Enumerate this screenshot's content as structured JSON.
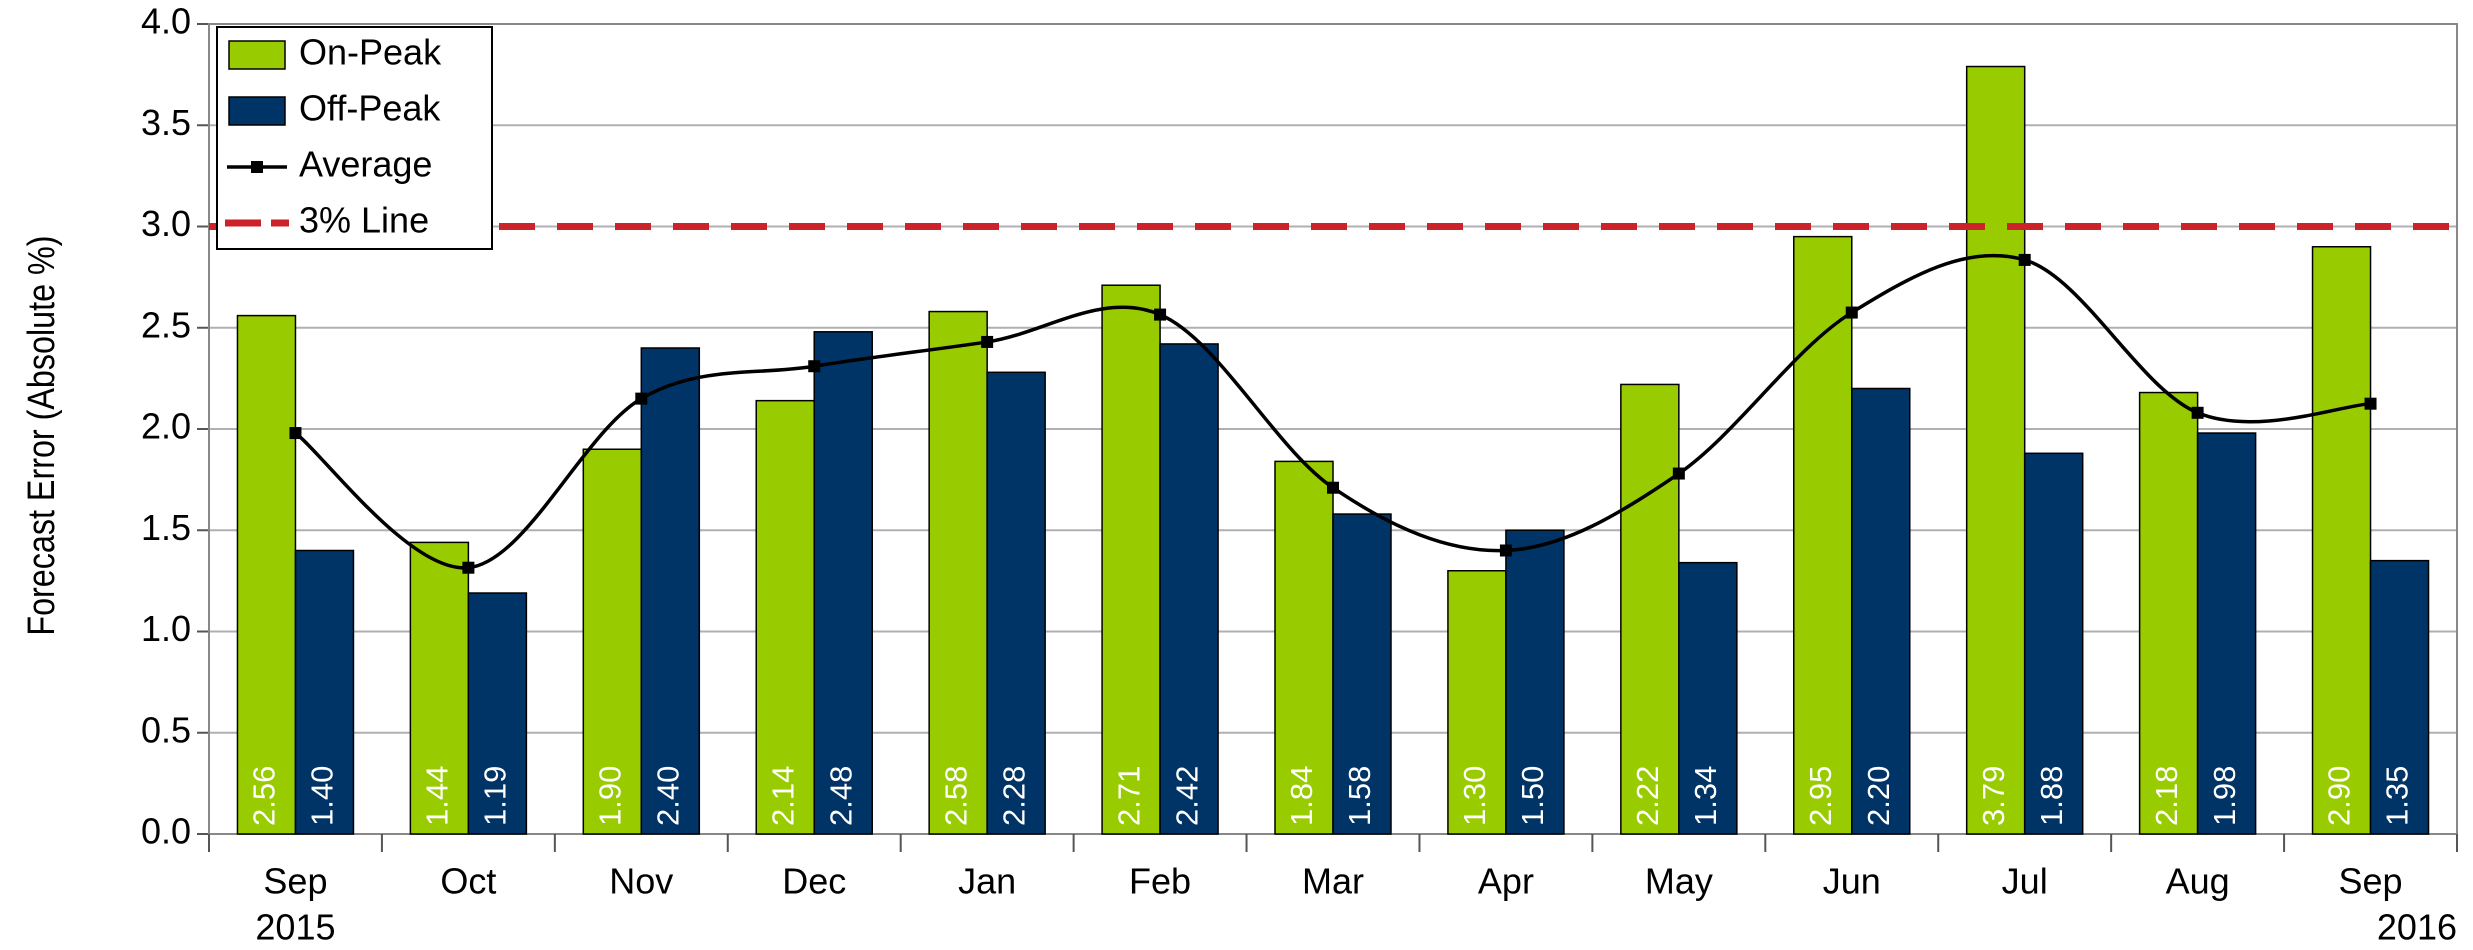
{
  "chart_data": {
    "type": "bar",
    "y_label": "Forecast Error  (Absolute %)",
    "categories": [
      "Sep",
      "Oct",
      "Nov",
      "Dec",
      "Jan",
      "Feb",
      "Mar",
      "Apr",
      "May",
      "Jun",
      "Jul",
      "Aug",
      "Sep"
    ],
    "year_labels": {
      "start": "2015",
      "end": "2016"
    },
    "series": [
      {
        "name": "On-Peak",
        "color": "#99cc00",
        "values": [
          2.56,
          1.44,
          1.9,
          2.14,
          2.58,
          2.71,
          1.84,
          1.3,
          2.22,
          2.95,
          3.79,
          2.18,
          2.9
        ],
        "value_labels": [
          "2.56",
          "1.44",
          "1.90",
          "2.14",
          "2.58",
          "2.71",
          "1.84",
          "1.30",
          "2.22",
          "2.95",
          "3.79",
          "2.18",
          "2.90"
        ]
      },
      {
        "name": "Off-Peak",
        "color": "#003366",
        "values": [
          1.4,
          1.19,
          2.4,
          2.48,
          2.28,
          2.42,
          1.58,
          1.5,
          1.34,
          2.2,
          1.88,
          1.98,
          1.35
        ],
        "value_labels": [
          "1.40",
          "1.19",
          "2.40",
          "2.48",
          "2.28",
          "2.42",
          "1.58",
          "1.50",
          "1.34",
          "2.20",
          "1.88",
          "1.98",
          "1.35"
        ]
      },
      {
        "name": "Average",
        "type": "line",
        "color": "#000000",
        "values": [
          1.98,
          1.315,
          2.15,
          2.31,
          2.43,
          2.565,
          1.71,
          1.4,
          1.78,
          2.575,
          2.835,
          2.08,
          2.125
        ]
      }
    ],
    "reference_line": {
      "name": "3% Line",
      "value": 3.0,
      "color": "#cc2229"
    },
    "ylim": [
      0,
      4
    ],
    "yticks": [
      {
        "value": 0,
        "label": "0.0"
      },
      0.5,
      {
        "value": 1,
        "label": "1.0"
      },
      1.5,
      {
        "value": 2,
        "label": "2.0"
      },
      2.5,
      {
        "value": 3,
        "label": "3.0"
      },
      3.5,
      {
        "value": 4,
        "label": "4.0"
      }
    ],
    "grid": true,
    "legend": "upper left"
  }
}
